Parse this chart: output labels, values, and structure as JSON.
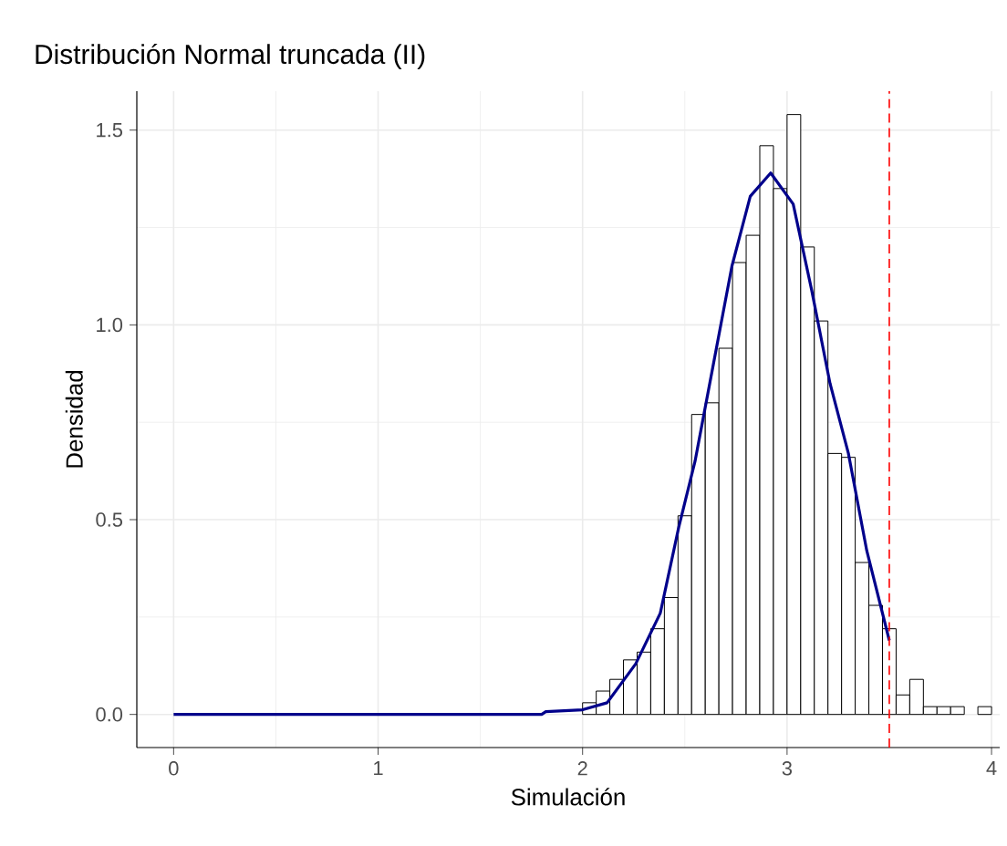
{
  "chart_data": {
    "type": "histogram",
    "title": "Distribución Normal truncada (II)",
    "xlabel": "Simulación",
    "ylabel": "Densidad",
    "xlim": [
      -0.18,
      4.04
    ],
    "ylim": [
      -0.085,
      1.6
    ],
    "xticks": [
      0,
      1,
      2,
      3,
      4
    ],
    "yticks": [
      {
        "value": 0,
        "label": "0.0"
      },
      {
        "value": 0.5,
        "label": "0.5"
      },
      {
        "value": 1,
        "label": "1.0"
      },
      {
        "value": 1.5,
        "label": "1.5"
      }
    ],
    "grid": true,
    "series": [
      {
        "color": "#000000",
        "bins": [
          2,
          2.0667,
          2.1333,
          2.2,
          2.2667,
          2.3333,
          2.4,
          2.4667,
          2.5333,
          2.6,
          2.6667,
          2.7333,
          2.8,
          2.8667,
          2.9333,
          3,
          3.0667,
          3.1333,
          3.2,
          3.2667,
          3.3333,
          3.4,
          3.4667,
          3.5333,
          3.6,
          3.6667,
          3.7333,
          3.8,
          3.8667,
          3.9333,
          4
        ],
        "values": [
          0.03,
          0.06,
          0.09,
          0.14,
          0.16,
          0.22,
          0.3,
          0.51,
          0.77,
          0.8,
          0.94,
          1.16,
          1.23,
          1.46,
          1.35,
          1.54,
          1.2,
          1.01,
          0.67,
          0.66,
          0.39,
          0.28,
          0.22,
          0.05,
          0.09,
          0.02,
          0.02,
          0.02,
          0,
          0.02
        ]
      },
      {
        "type": "line",
        "color": "#00008b",
        "x": [
          0,
          1.8,
          1.82,
          2.0,
          2.12,
          2.26,
          2.38,
          2.47,
          2.55,
          2.64,
          2.73,
          2.82,
          2.92,
          3.03,
          3.12,
          3.21,
          3.3,
          3.39,
          3.5
        ],
        "values": [
          0,
          0,
          0.007,
          0.012,
          0.03,
          0.13,
          0.26,
          0.48,
          0.65,
          0.9,
          1.15,
          1.33,
          1.39,
          1.31,
          1.09,
          0.85,
          0.67,
          0.42,
          0.19
        ]
      }
    ],
    "ref_lines": [
      {
        "axis": "x",
        "value": 3.5,
        "color": "#ff0000",
        "line_style": "dashed"
      }
    ]
  }
}
